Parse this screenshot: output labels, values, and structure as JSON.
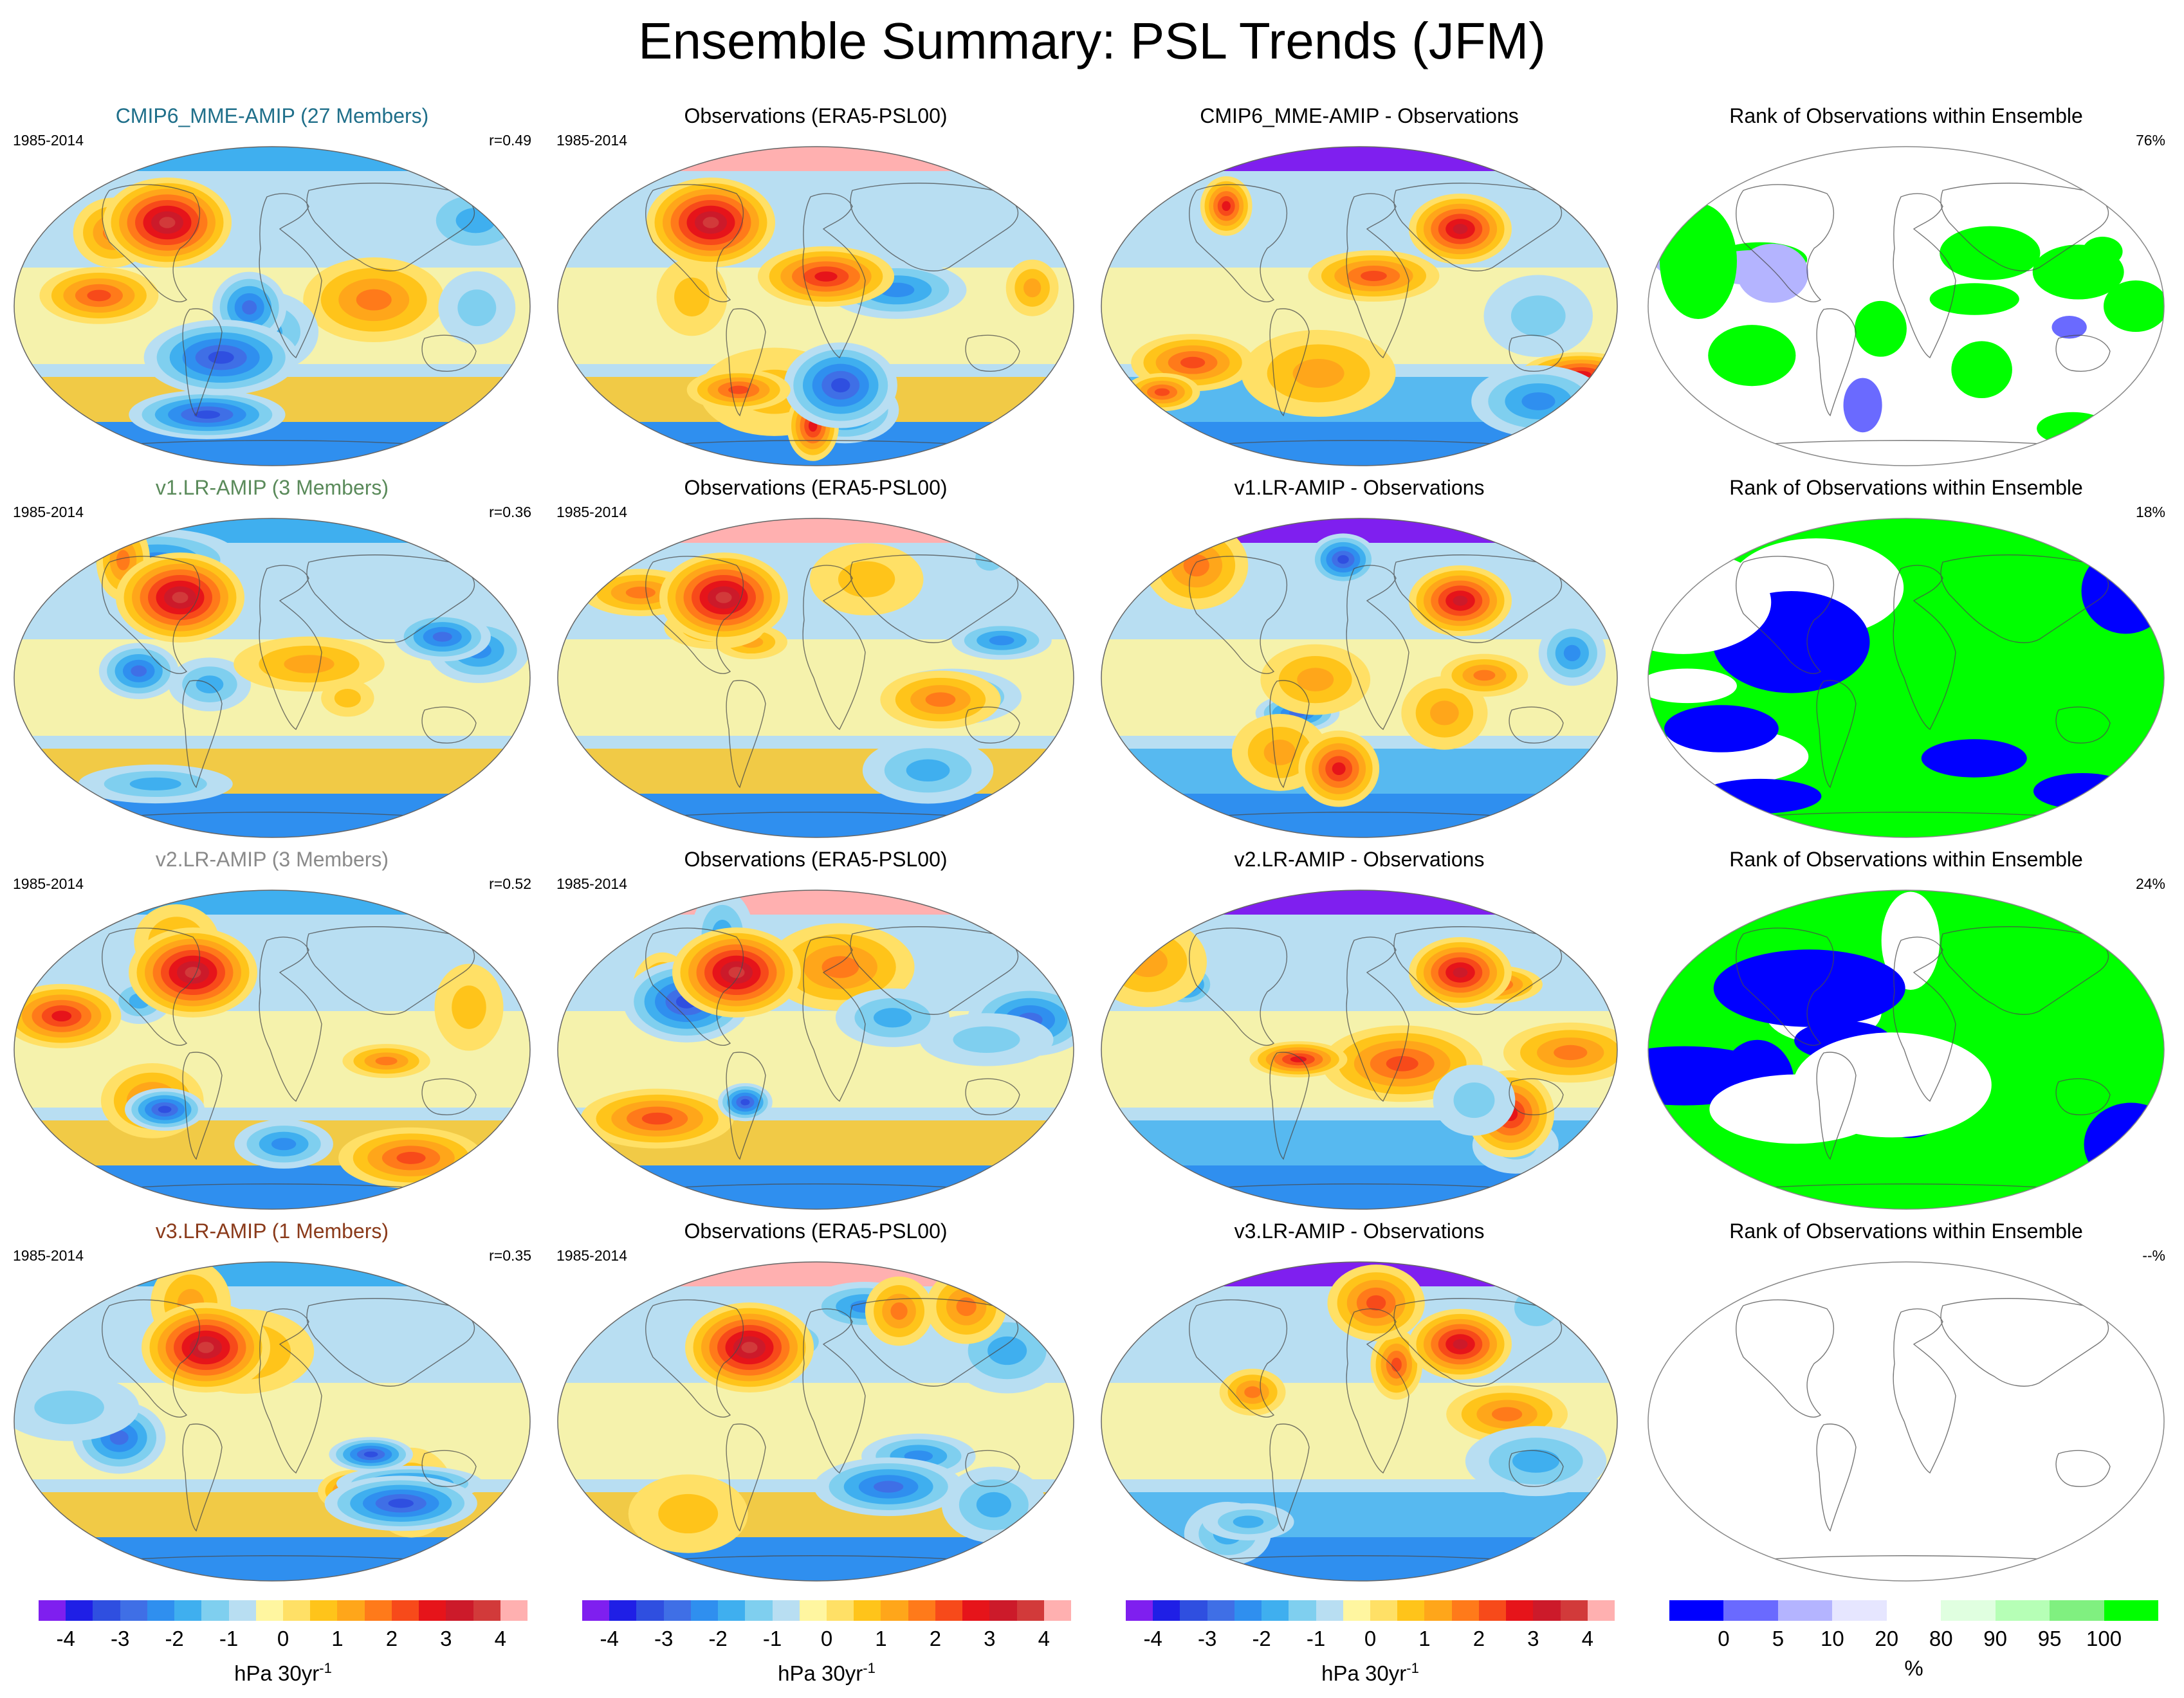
{
  "title": "Ensemble Summary: PSL Trends (JFM)",
  "period": "1985-2014",
  "rows": [
    {
      "model_title": "CMIP6_MME-AMIP (27 Members)",
      "model_title_color": "#1f6f8a",
      "corr": "r=0.49",
      "obs_title": "Observations (ERA5-PSL00)",
      "diff_title": "CMIP6_MME-AMIP - Observations",
      "rank_title": "Rank of Observations within Ensemble",
      "rank_pct": "76%"
    },
    {
      "model_title": "v1.LR-AMIP (3 Members)",
      "model_title_color": "#5a8a5a",
      "corr": "r=0.36",
      "obs_title": "Observations (ERA5-PSL00)",
      "diff_title": "v1.LR-AMIP - Observations",
      "rank_title": "Rank of Observations within Ensemble",
      "rank_pct": "18%"
    },
    {
      "model_title": "v2.LR-AMIP (3 Members)",
      "model_title_color": "#8a8a8a",
      "corr": "r=0.52",
      "obs_title": "Observations (ERA5-PSL00)",
      "diff_title": "v2.LR-AMIP - Observations",
      "rank_title": "Rank of Observations within Ensemble",
      "rank_pct": "24%"
    },
    {
      "model_title": "v3.LR-AMIP (1 Members)",
      "model_title_color": "#8a3a1a",
      "corr": "r=0.35",
      "obs_title": "Observations (ERA5-PSL00)",
      "diff_title": "v3.LR-AMIP - Observations",
      "rank_title": "Rank of Observations within Ensemble",
      "rank_pct": "--%"
    }
  ],
  "trend_colorbar": {
    "unit_base": "hPa 30yr",
    "unit_sup": "-1",
    "tick_labels": [
      "-4",
      "-3",
      "-2",
      "-1",
      "0",
      "1",
      "2",
      "3",
      "4"
    ],
    "colors": [
      "#7f1fef",
      "#1f1fe6",
      "#2f4fe0",
      "#3f6fe6",
      "#2f8fef",
      "#3fafef",
      "#7fcfef",
      "#b8def2",
      "#fff6a0",
      "#ffe066",
      "#ffc41a",
      "#ffa61a",
      "#ff7a1a",
      "#f74a1a",
      "#e6141a",
      "#cc1a2a",
      "#d23a3a",
      "#ffb0b0"
    ]
  },
  "rank_colorbar": {
    "unit": "%",
    "tick_labels": [
      "0",
      "5",
      "10",
      "20",
      "80",
      "90",
      "95",
      "100"
    ],
    "colors": [
      "#0000ff",
      "#6a6aff",
      "#b4b4ff",
      "#e6e6ff",
      "#ffffff",
      "#e0ffe0",
      "#b6ffb6",
      "#80f080",
      "#00ff00"
    ]
  },
  "palette": {
    "ocean_base": "#b8def2",
    "land_line": "#555555",
    "rank_green": "#00ff00",
    "rank_blue": "#0000ff"
  }
}
